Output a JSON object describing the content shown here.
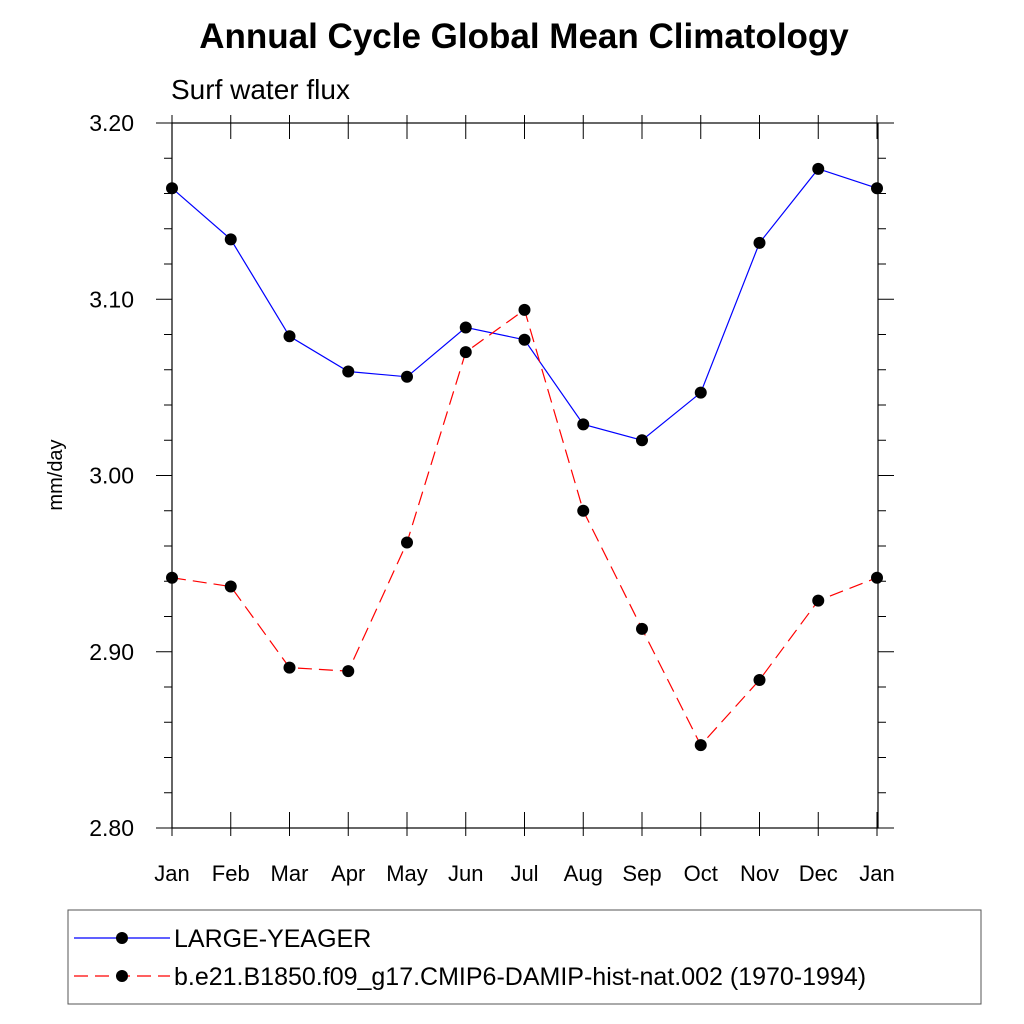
{
  "chart_data": {
    "type": "line",
    "title": "Annual Cycle Global Mean Climatology",
    "subtitle": "Surf water flux",
    "ylabel": "mm/day",
    "xlabel": "",
    "ylim": [
      2.8,
      3.2
    ],
    "yticks": [
      2.8,
      2.9,
      3.0,
      3.1,
      3.2
    ],
    "ytick_labels": [
      "2.80",
      "2.90",
      "3.00",
      "3.10",
      "3.20"
    ],
    "categories": [
      "Jan",
      "Feb",
      "Mar",
      "Apr",
      "May",
      "Jun",
      "Jul",
      "Aug",
      "Sep",
      "Oct",
      "Nov",
      "Dec",
      "Jan"
    ],
    "legend_position": "bottom",
    "series": [
      {
        "name": "LARGE-YEAGER",
        "color": "#0000ff",
        "line_style": "solid",
        "marker": "filled-circle",
        "values": [
          3.163,
          3.134,
          3.079,
          3.059,
          3.056,
          3.084,
          3.077,
          3.029,
          3.02,
          3.047,
          3.132,
          3.174,
          3.163
        ]
      },
      {
        "name": "b.e21.B1850.f09_g17.CMIP6-DAMIP-hist-nat.002 (1970-1994)",
        "color": "#ff0000",
        "line_style": "dashed",
        "marker": "filled-circle",
        "values": [
          2.942,
          2.937,
          2.891,
          2.889,
          2.962,
          3.07,
          3.094,
          2.98,
          2.913,
          2.847,
          2.884,
          2.929,
          2.942
        ]
      }
    ]
  }
}
